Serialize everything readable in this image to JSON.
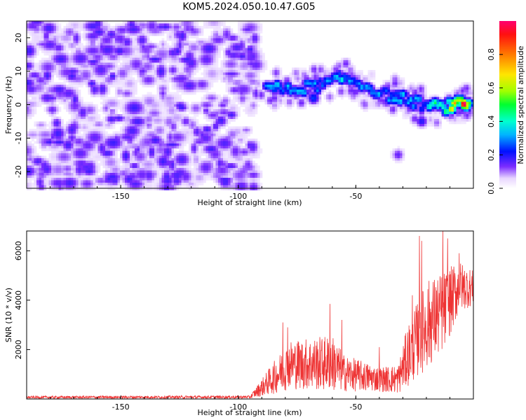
{
  "title": "KOM5.2024.050.10.47.G05",
  "chart_data": [
    {
      "type": "heatmap",
      "xlabel": "Height of straight line (km)",
      "ylabel": "Frequency (Hz)",
      "xlim": [
        -190,
        0
      ],
      "ylim": [
        -25,
        25
      ],
      "xticks": [
        -150,
        -100,
        -50
      ],
      "yticks": [
        -20,
        -10,
        0,
        10,
        20
      ],
      "colorbar": {
        "label": "Normalized spectral amplitude",
        "range": [
          0,
          1
        ],
        "ticks": [
          "0.0",
          "0.2",
          "0.4",
          "0.6",
          "0.8"
        ]
      },
      "noise_region_km": [
        -190,
        -92
      ],
      "signal_track": [
        {
          "x": -88,
          "y": 6,
          "amp": 0.35
        },
        {
          "x": -80,
          "y": 4,
          "amp": 0.3
        },
        {
          "x": -72,
          "y": 5,
          "amp": 0.32
        },
        {
          "x": -64,
          "y": 6,
          "amp": 0.3
        },
        {
          "x": -56,
          "y": 8,
          "amp": 0.35
        },
        {
          "x": -50,
          "y": 7,
          "amp": 0.3
        },
        {
          "x": -44,
          "y": 5,
          "amp": 0.32
        },
        {
          "x": -38,
          "y": 3,
          "amp": 0.3
        },
        {
          "x": -30,
          "y": 2,
          "amp": 0.32
        },
        {
          "x": -22,
          "y": 0,
          "amp": 0.3
        },
        {
          "x": -14,
          "y": -1,
          "amp": 0.45
        },
        {
          "x": -8,
          "y": 0,
          "amp": 0.7
        },
        {
          "x": -4,
          "y": 0,
          "amp": 0.95
        },
        {
          "x": -1,
          "y": 0.5,
          "amp": 0.6
        }
      ],
      "extra_blobs": [
        {
          "x": -32,
          "y": -15,
          "amp": 0.15
        },
        {
          "x": -22,
          "y": -5,
          "amp": 0.2
        },
        {
          "x": -68,
          "y": 2,
          "amp": 0.25
        }
      ]
    },
    {
      "type": "line",
      "xlabel": "Height of straight line (km)",
      "ylabel": "SNR (10 * v/v)",
      "xlim": [
        -190,
        0
      ],
      "ylim": [
        0,
        6800
      ],
      "xticks": [
        -150,
        -100,
        -50
      ],
      "yticks": [
        2000,
        4000,
        6000
      ],
      "line_color": "#ee3333",
      "envelope": [
        {
          "x": -190,
          "lo": 20,
          "hi": 120
        },
        {
          "x": -95,
          "lo": 20,
          "hi": 140
        },
        {
          "x": -85,
          "lo": 200,
          "hi": 1500
        },
        {
          "x": -78,
          "lo": 400,
          "hi": 2400
        },
        {
          "x": -60,
          "lo": 300,
          "hi": 2600
        },
        {
          "x": -55,
          "lo": 300,
          "hi": 1800
        },
        {
          "x": -40,
          "lo": 300,
          "hi": 1300
        },
        {
          "x": -32,
          "lo": 200,
          "hi": 1400
        },
        {
          "x": -28,
          "lo": 500,
          "hi": 3000
        },
        {
          "x": -20,
          "lo": 1200,
          "hi": 4800
        },
        {
          "x": -12,
          "lo": 2000,
          "hi": 5200
        },
        {
          "x": -6,
          "lo": 3500,
          "hi": 5600
        },
        {
          "x": 0,
          "lo": 3800,
          "hi": 5200
        }
      ],
      "spikes": [
        {
          "x": -81,
          "y": 3100
        },
        {
          "x": -79,
          "y": 2900
        },
        {
          "x": -61,
          "y": 3850
        },
        {
          "x": -56,
          "y": 3200
        },
        {
          "x": -40,
          "y": 2100
        },
        {
          "x": -26,
          "y": 4200
        },
        {
          "x": -23,
          "y": 6600
        },
        {
          "x": -22,
          "y": 6400
        },
        {
          "x": -13,
          "y": 6800
        },
        {
          "x": -11,
          "y": 6500
        },
        {
          "x": -6,
          "y": 5900
        }
      ]
    }
  ]
}
